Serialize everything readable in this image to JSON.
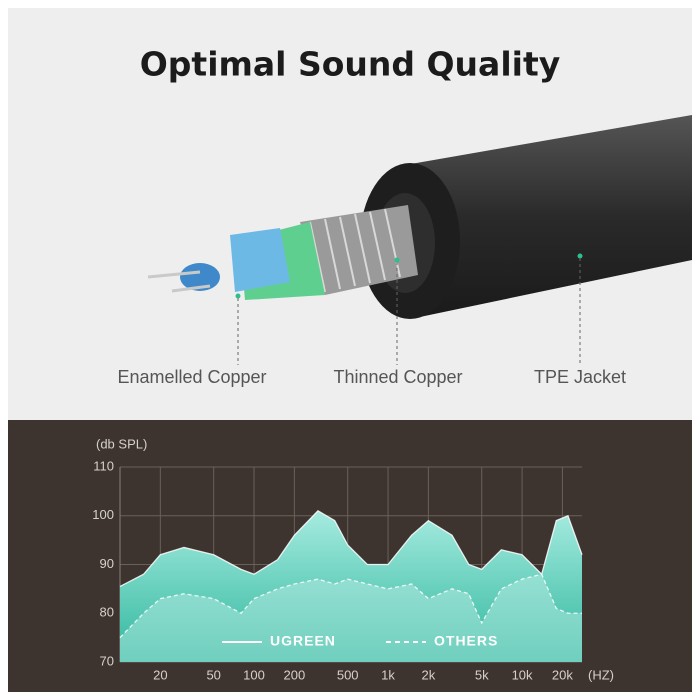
{
  "header": {
    "title": "Optimal Sound Quality"
  },
  "labels": [
    "Enamelled Copper",
    "Thinned Copper",
    "TPE Jacket"
  ],
  "chart_data": {
    "type": "line",
    "xscale": "log",
    "ylabel": "(db SPL)",
    "xlabel": "(HZ)",
    "x": [
      10,
      15,
      20,
      30,
      50,
      80,
      100,
      150,
      200,
      300,
      400,
      500,
      700,
      1000,
      1500,
      2000,
      3000,
      4000,
      5000,
      7000,
      10000,
      14000,
      18000,
      22000,
      28000
    ],
    "series": [
      {
        "name": "UGREEN",
        "color": "#ffffff",
        "fill": "#5fd3c0",
        "dash": false,
        "values": [
          85.5,
          88,
          92,
          93.5,
          92,
          89,
          88,
          91,
          96,
          101,
          99,
          94,
          90,
          90,
          96,
          99,
          96,
          90,
          89,
          93,
          92,
          88,
          99,
          100,
          92
        ]
      },
      {
        "name": "OTHERS",
        "color": "#ffffff",
        "fill": "#bfeee6",
        "dash": true,
        "values": [
          75,
          80,
          83,
          84,
          83,
          80,
          83,
          85,
          86,
          87,
          86,
          87,
          86,
          85,
          86,
          83,
          85,
          84,
          78,
          85,
          87,
          88,
          81,
          80,
          80
        ]
      }
    ],
    "xlim": [
      10,
      28000
    ],
    "xticks": [
      20,
      50,
      100,
      200,
      500,
      {
        "value": 1000,
        "label": "1k"
      },
      {
        "value": 2000,
        "label": "2k"
      },
      {
        "value": 5000,
        "label": "5k"
      },
      {
        "value": 10000,
        "label": "10k"
      },
      {
        "value": 20000,
        "label": "20k"
      }
    ],
    "ylim": [
      70,
      110
    ],
    "yticks": [
      70,
      80,
      90,
      100,
      110
    ],
    "grid": true,
    "legend": "bottom"
  }
}
